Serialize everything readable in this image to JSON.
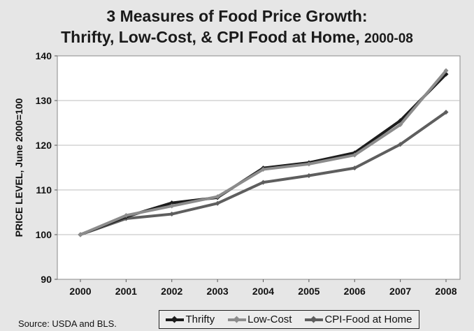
{
  "chart_data": {
    "type": "line",
    "title_line1": "3 Measures of Food Price Growth:",
    "title_line2_main": "Thrifty, Low-Cost, & CPI Food at Home,",
    "title_line2_years": "2000-08",
    "ylabel": "PRICE LEVEL, June 2000=100",
    "xlabel": "",
    "categories": [
      "2000",
      "2001",
      "2002",
      "2003",
      "2004",
      "2005",
      "2006",
      "2007",
      "2008"
    ],
    "yticks": [
      "90",
      "100",
      "110",
      "120",
      "130",
      "140"
    ],
    "ylim": [
      90,
      140
    ],
    "grid": "horizontal",
    "legend_position": "bottom",
    "series": [
      {
        "name": "Thrifty",
        "color": "#1c1c1c",
        "values": [
          100,
          104,
          107.1,
          108.3,
          114.9,
          116.1,
          118.3,
          125.5,
          135.9
        ]
      },
      {
        "name": "Low-Cost",
        "color": "#8c8c8c",
        "values": [
          100,
          104.3,
          106.4,
          108.5,
          114.6,
          115.8,
          117.8,
          124.6,
          136.7
        ]
      },
      {
        "name": "CPI-Food at Home",
        "color": "#5e5e5e",
        "values": [
          100,
          103.6,
          104.6,
          107,
          111.7,
          113.2,
          114.9,
          120.2,
          127.4
        ]
      }
    ]
  },
  "source": "Source: USDA and BLS."
}
